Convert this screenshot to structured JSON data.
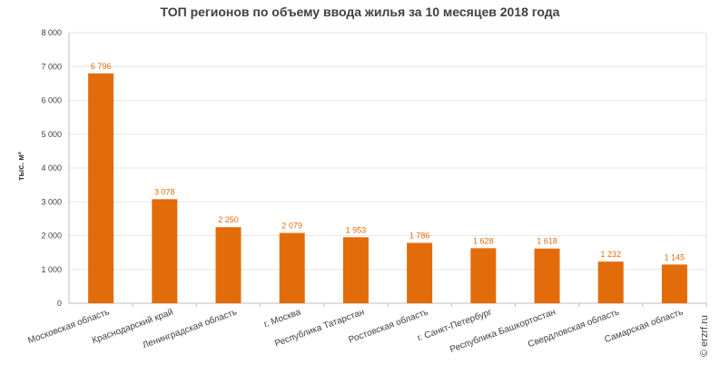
{
  "chart_data": {
    "type": "bar",
    "title": "ТОП регионов по объему ввода жилья за 10 месяцев 2018 года",
    "ylabel": "тыс. м²",
    "xlabel": "",
    "ylim": [
      0,
      8000
    ],
    "yticks": [
      0,
      1000,
      2000,
      3000,
      4000,
      5000,
      6000,
      7000,
      8000
    ],
    "ytick_labels": [
      "0",
      "1 000",
      "2 000",
      "3 000",
      "4 000",
      "5 000",
      "6 000",
      "7 000",
      "8 000"
    ],
    "grid": true,
    "categories": [
      "Московская область",
      "Краснодарский край",
      "Ленинградская область",
      "г. Москва",
      "Республика Татарстан",
      "Ростовская область",
      "г. Санкт-Петербург",
      "Республика Башкортостан",
      "Свердловская область",
      "Самарская область"
    ],
    "values": [
      6796,
      3078,
      2250,
      2079,
      1953,
      1786,
      1628,
      1618,
      1232,
      1145
    ],
    "value_labels": [
      "6 796",
      "3 078",
      "2 250",
      "2 079",
      "1 953",
      "1 786",
      "1 628",
      "1 618",
      "1 232",
      "1 145"
    ],
    "colors": {
      "bar": "#E36C0A",
      "label": "#E36C0A",
      "grid": "#E6E6E6",
      "axis": "#BFBFBF"
    }
  },
  "watermark": "© erzrf.ru"
}
